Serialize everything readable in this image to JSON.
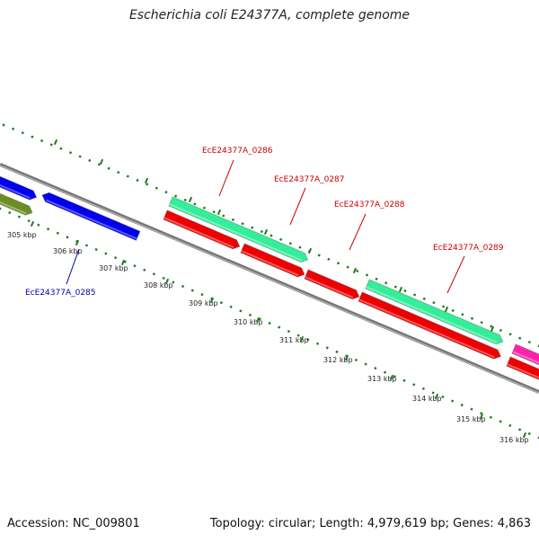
{
  "title": "Escherichia coli E24377A, complete genome",
  "footer": {
    "accession": "Accession: NC_009801",
    "summary": "Topology: circular; Length: 4,979,619 bp; Genes: 4,863"
  },
  "colors": {
    "backbone": "#777777",
    "tick": "#1e7a1e",
    "tick_label": "#222222",
    "gene_label_red": "#cc0000",
    "gene_label_blue": "#0000aa"
  },
  "scale_labels": [
    "305 kbp",
    "306 kbp",
    "307 kbp",
    "308 kbp",
    "309 kbp",
    "310 kbp",
    "311 kbp",
    "312 kbp",
    "313 kbp",
    "314 kbp",
    "315 kbp",
    "316 kbp"
  ],
  "gene_labels": [
    {
      "text": "EcE24377A_0285",
      "color": "#0000aa"
    },
    {
      "text": "EcE24377A_0286",
      "color": "#cc0000"
    },
    {
      "text": "EcE24377A_0287",
      "color": "#cc0000"
    },
    {
      "text": "EcE24377A_0288",
      "color": "#cc0000"
    },
    {
      "text": "EcE24377A_0289",
      "color": "#cc0000"
    }
  ],
  "features": [
    {
      "name": "feature-olive",
      "color": "#6b8e23"
    },
    {
      "name": "feature-blue-1",
      "color": "#0000ee"
    },
    {
      "name": "feature-blue-2",
      "color": "#0000ee"
    },
    {
      "name": "feature-green-1",
      "color": "#33ee99"
    },
    {
      "name": "feature-green-2",
      "color": "#33ee99"
    },
    {
      "name": "feature-red-1",
      "color": "#ee0000"
    },
    {
      "name": "feature-red-2",
      "color": "#ee0000"
    },
    {
      "name": "feature-red-3",
      "color": "#ee0000"
    },
    {
      "name": "feature-red-4",
      "color": "#ee0000"
    },
    {
      "name": "feature-red-5",
      "color": "#ee0000"
    },
    {
      "name": "feature-magenta",
      "color": "#ff22aa"
    }
  ]
}
